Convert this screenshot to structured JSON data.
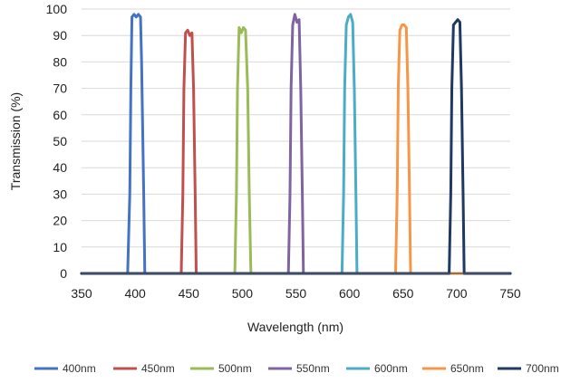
{
  "chart_data": {
    "type": "line",
    "title": "",
    "xlabel": "Wavelength (nm)",
    "ylabel": "Transmission (%)",
    "xlim": [
      350,
      750
    ],
    "ylim": [
      0,
      100
    ],
    "xticks": [
      350,
      400,
      450,
      500,
      550,
      600,
      650,
      700,
      750
    ],
    "yticks": [
      0,
      10,
      20,
      30,
      40,
      50,
      60,
      70,
      80,
      90,
      100
    ],
    "grid": "horizontal",
    "legend": "bottom",
    "series": [
      {
        "name": "400nm",
        "color": "#4472C4",
        "x": [
          350,
          393,
          395,
          396,
          397,
          399,
          401,
          403,
          405,
          406,
          408,
          409,
          750
        ],
        "y": [
          0,
          0,
          30,
          70,
          97,
          98,
          97,
          98,
          97,
          80,
          30,
          0,
          0
        ]
      },
      {
        "name": "450nm",
        "color": "#C0504D",
        "x": [
          350,
          443,
          444.5,
          445.5,
          447,
          449,
          451,
          453,
          454.5,
          456,
          457,
          750
        ],
        "y": [
          0,
          0,
          30,
          70,
          91,
          92,
          90,
          91,
          70,
          30,
          0,
          0
        ]
      },
      {
        "name": "500nm",
        "color": "#9BBB59",
        "x": [
          350,
          493,
          494.5,
          495.5,
          497,
          499,
          501,
          503,
          505,
          506.5,
          508,
          750
        ],
        "y": [
          0,
          0,
          30,
          70,
          93,
          91,
          93,
          92,
          70,
          30,
          0,
          0
        ]
      },
      {
        "name": "550nm",
        "color": "#8064A2",
        "x": [
          350,
          543,
          544.5,
          545.5,
          547,
          549,
          551,
          553,
          554.5,
          556,
          557,
          750
        ],
        "y": [
          0,
          0,
          30,
          70,
          94,
          98,
          95,
          96,
          70,
          30,
          0,
          0
        ]
      },
      {
        "name": "600nm",
        "color": "#4BACC6",
        "x": [
          350,
          593,
          594.5,
          595.5,
          597,
          599,
          601,
          603,
          604.5,
          606,
          607,
          750
        ],
        "y": [
          0,
          0,
          30,
          70,
          94,
          97,
          98,
          95,
          70,
          30,
          0,
          0
        ]
      },
      {
        "name": "650nm",
        "color": "#F79646",
        "x": [
          350,
          643,
          644.5,
          645.5,
          647,
          649,
          651,
          653,
          654.5,
          656,
          657,
          750
        ],
        "y": [
          0,
          0,
          30,
          70,
          92,
          94,
          94,
          93,
          70,
          30,
          0,
          0
        ]
      },
      {
        "name": "700nm",
        "color": "#1F3864",
        "x": [
          350,
          693,
          694.5,
          695.5,
          697,
          699,
          701,
          703,
          704.5,
          706,
          707,
          750
        ],
        "y": [
          0,
          0,
          30,
          70,
          94,
          95,
          96,
          95,
          70,
          30,
          0,
          0
        ]
      }
    ]
  }
}
